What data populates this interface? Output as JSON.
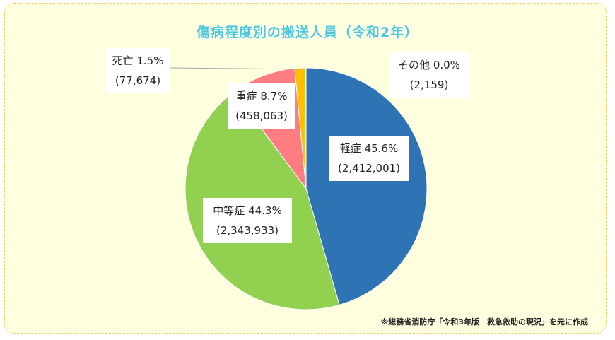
{
  "chart_data": {
    "type": "pie",
    "title": "傷病程度別の搬送人員（令和2年）",
    "slices": [
      {
        "name": "軽症",
        "percent_label": "45.6%",
        "count_label": "(2,412,001)",
        "value": 2412001,
        "color": "#2e74b5"
      },
      {
        "name": "中等症",
        "percent_label": "44.3%",
        "count_label": "(2,343,933)",
        "value": 2343933,
        "color": "#92d050"
      },
      {
        "name": "重症",
        "percent_label": "8.7%",
        "count_label": "(458,063)",
        "value": 458063,
        "color": "#ff7c80"
      },
      {
        "name": "死亡",
        "percent_label": "1.5%",
        "count_label": "(77,674)",
        "value": 77674,
        "color": "#ffc000"
      },
      {
        "name": "その他",
        "percent_label": "0.0%",
        "count_label": "(2,159)",
        "value": 2159,
        "color": "#a5a5a5"
      }
    ]
  },
  "source_note": "※総務省消防庁「令和3年版　救急救助の現況」を元に作成"
}
